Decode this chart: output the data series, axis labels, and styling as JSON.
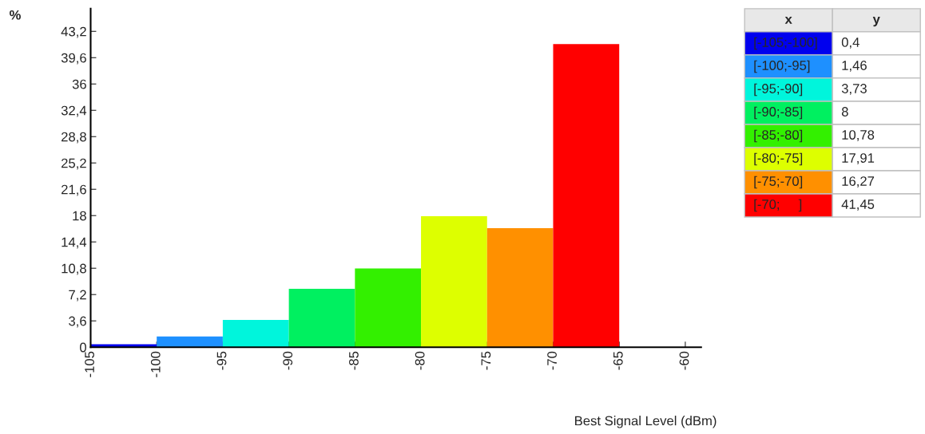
{
  "chart_data": {
    "type": "histogram",
    "bins": [
      -105,
      -100,
      -95,
      -90,
      -85,
      -80,
      -75,
      -70,
      -65
    ],
    "values": [
      0.4,
      1.46,
      3.73,
      8,
      10.78,
      17.91,
      16.27,
      41.45
    ],
    "categories": [
      "[-105;-100]",
      "[-100;-95]",
      "[-95;-90]",
      "[-90;-85]",
      "[-85;-80]",
      "[-80;-75]",
      "[-75;-70]",
      "[-70;     ]"
    ],
    "colors": [
      "#0000ee",
      "#1e90ff",
      "#00f5dc",
      "#00f060",
      "#33f000",
      "#ddff00",
      "#ff9000",
      "#ff0000"
    ],
    "annotations": [
      "x",
      "y",
      "0,4",
      "1,46",
      "3,73",
      "8",
      "10,78",
      "17,91",
      "16,27",
      "41,45"
    ],
    "ylabel": "%",
    "xlabel": "Best Signal Level (dBm)",
    "xlim": [
      -105,
      -58.8
    ],
    "ylim": [
      0,
      46.3
    ],
    "xticks": [
      -105,
      -100,
      -95,
      -90,
      -85,
      -80,
      -75,
      -70,
      -65,
      -60
    ],
    "yticks": [
      {
        "value": 0,
        "label": "0"
      },
      {
        "value": 3.6,
        "label": "3,6"
      },
      {
        "value": 7.2,
        "label": "7,2"
      },
      {
        "value": 10.8,
        "label": "10,8"
      },
      {
        "value": 14.4,
        "label": "14,4"
      },
      {
        "value": 18,
        "label": "18"
      },
      {
        "value": 21.6,
        "label": "21,6"
      },
      {
        "value": 25.2,
        "label": "25,2"
      },
      {
        "value": 28.8,
        "label": "28,8"
      },
      {
        "value": 32.4,
        "label": "32,4"
      },
      {
        "value": 36,
        "label": "36"
      },
      {
        "value": 39.6,
        "label": "39,6"
      },
      {
        "value": 43.2,
        "label": "43,2"
      }
    ],
    "grid": false,
    "legend": false
  }
}
